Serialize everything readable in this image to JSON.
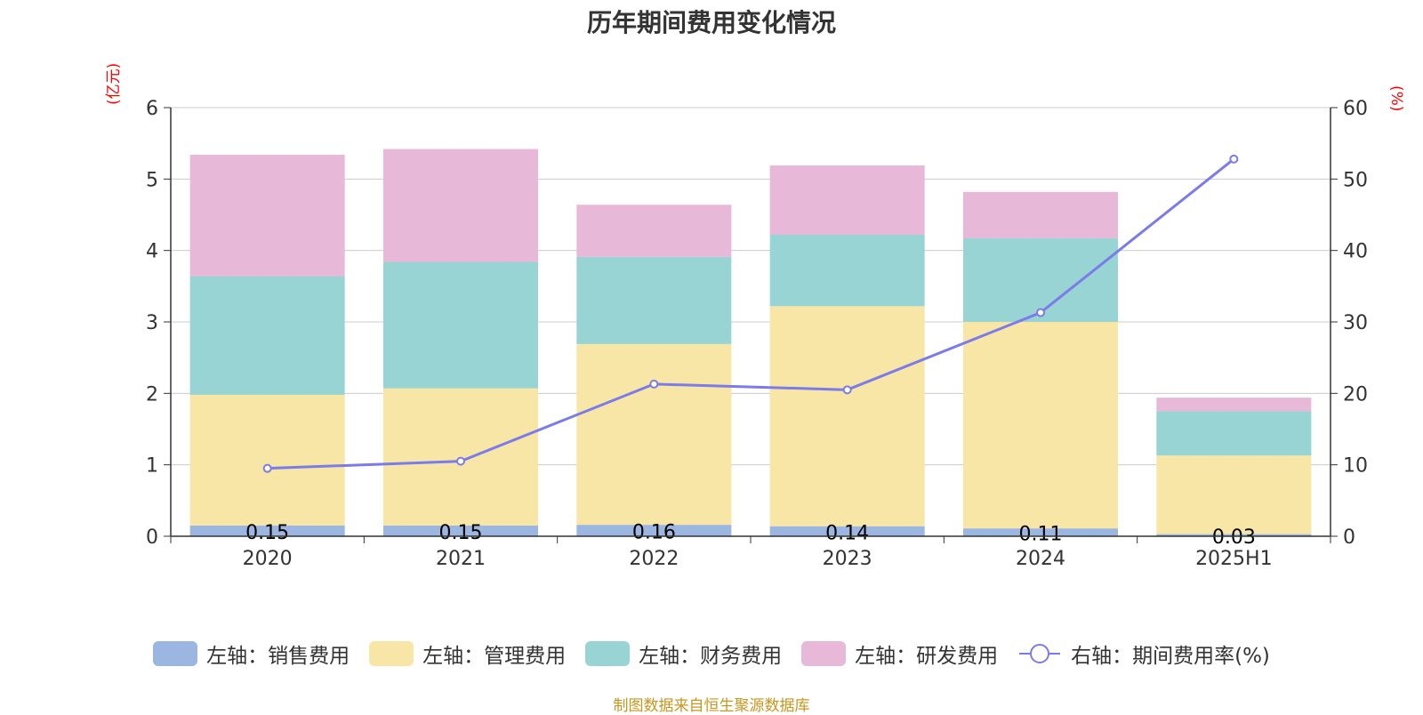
{
  "title": "历年期间费用变化情况",
  "source": "制图数据来自恒生聚源数据库",
  "colors": {
    "title": "#333333",
    "axis_label": "#ff0000",
    "source": "#c8961e",
    "grid": "#cccccc",
    "axis": "#333333"
  },
  "chart_data": {
    "type": "bar",
    "stacked": true,
    "title": "历年期间费用变化情况",
    "categories": [
      "2020",
      "2021",
      "2022",
      "2023",
      "2024",
      "2025H1"
    ],
    "ylabel_left": "(亿元)",
    "ylabel_right": "(%)",
    "ylim_left": [
      0,
      6
    ],
    "ylim_right": [
      0,
      60
    ],
    "yticks_left": [
      "0",
      "1",
      "2",
      "3",
      "4",
      "5",
      "6"
    ],
    "yticks_right": [
      "0",
      "10",
      "20",
      "30",
      "40",
      "50",
      "60"
    ],
    "grid": true,
    "legend_position": "bottom",
    "series": [
      {
        "name": "左轴：销售费用",
        "axis": "left",
        "type": "bar",
        "color": "#9bb6e0",
        "values": [
          0.15,
          0.15,
          0.16,
          0.14,
          0.11,
          0.03
        ],
        "labels": [
          "0.15",
          "0.15",
          "0.16",
          "0.14",
          "0.11",
          "0.03"
        ]
      },
      {
        "name": "左轴：管理费用",
        "axis": "left",
        "type": "bar",
        "color": "#f7e6a6",
        "values": [
          1.83,
          1.92,
          2.53,
          3.08,
          2.89,
          1.1
        ]
      },
      {
        "name": "左轴：财务费用",
        "axis": "left",
        "type": "bar",
        "color": "#98d4d4",
        "values": [
          1.66,
          1.77,
          1.22,
          1.0,
          1.17,
          0.62
        ]
      },
      {
        "name": "左轴：研发费用",
        "axis": "left",
        "type": "bar",
        "color": "#e7b8d8",
        "values": [
          1.7,
          1.58,
          0.73,
          0.97,
          0.65,
          0.19
        ]
      },
      {
        "name": "右轴：期间费用率(%)",
        "axis": "right",
        "type": "line",
        "color": "#7b7bea",
        "values": [
          9.5,
          10.5,
          21.3,
          20.5,
          31.3,
          52.8
        ]
      }
    ]
  }
}
